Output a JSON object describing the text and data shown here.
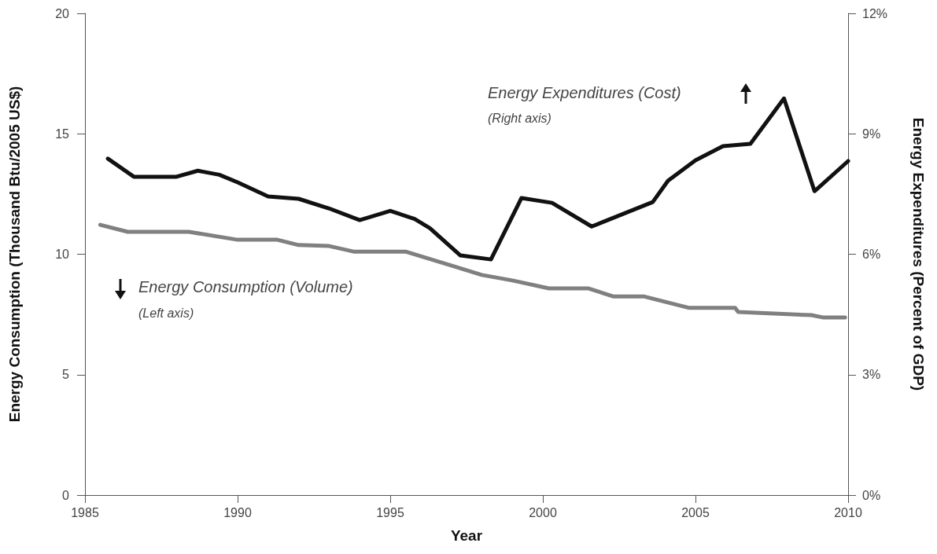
{
  "chart_data": {
    "type": "line",
    "xlabel": "Year",
    "ylabel": "Energy Consumption (Thousand Btu/2005 US$)",
    "y2label": "Energy Expenditures (Percent of GDP)",
    "annotations": [
      "Energy Expenditures (Cost)",
      "(Right axis)",
      "Energy Consumption (Volume)",
      "(Left axis)"
    ],
    "xlim": [
      1985,
      2010
    ],
    "xticks": [
      1985,
      1990,
      1995,
      2000,
      2005,
      2010
    ],
    "ylim": [
      0,
      20
    ],
    "yticks": [
      0,
      5,
      10,
      15,
      20
    ],
    "y2lim": [
      0,
      12
    ],
    "y2ticks": [
      {
        "value": 0,
        "label": "0%"
      },
      {
        "value": 3,
        "label": "3%"
      },
      {
        "value": 6,
        "label": "6%"
      },
      {
        "value": 9,
        "label": "9%"
      },
      {
        "value": 12,
        "label": "12%"
      }
    ],
    "grid": false,
    "marker": "none",
    "line_style": "solid",
    "series": [
      {
        "color": "#111111",
        "axis": "y2",
        "x": [
          1985.75,
          1986.6,
          1988,
          1988.7,
          1989.4,
          1990,
          1991,
          1992,
          1993,
          1994,
          1995,
          1995.8,
          1996.3,
          1997.3,
          1998.3,
          1999.3,
          2000.3,
          2001.6,
          2003.6,
          2004.1,
          2005,
          2005.9,
          2006.8,
          2007.9,
          2008.9,
          2010
        ],
        "values": [
          8.38,
          7.93,
          7.93,
          8.08,
          7.98,
          7.79,
          7.44,
          7.38,
          7.14,
          6.85,
          7.08,
          6.88,
          6.65,
          5.97,
          5.87,
          7.4,
          7.28,
          6.69,
          7.3,
          7.83,
          8.34,
          8.69,
          8.75,
          9.88,
          7.57,
          8.32
        ]
      },
      {
        "color": "#808080",
        "axis": "y",
        "x": [
          1985.5,
          1986.4,
          1988.4,
          1990,
          1991.3,
          1992,
          1993,
          1993.8,
          1995.5,
          1997,
          1998,
          1999,
          2000.2,
          2001.5,
          2002.3,
          2003.3,
          2004.8,
          2006.3,
          2006.4,
          2008.8,
          2009.2,
          2009.9
        ],
        "values": [
          11.22,
          10.93,
          10.93,
          10.6,
          10.6,
          10.38,
          10.34,
          10.11,
          10.11,
          9.53,
          9.14,
          8.91,
          8.58,
          8.58,
          8.25,
          8.25,
          7.77,
          7.77,
          7.6,
          7.47,
          7.37,
          7.37
        ]
      }
    ]
  }
}
